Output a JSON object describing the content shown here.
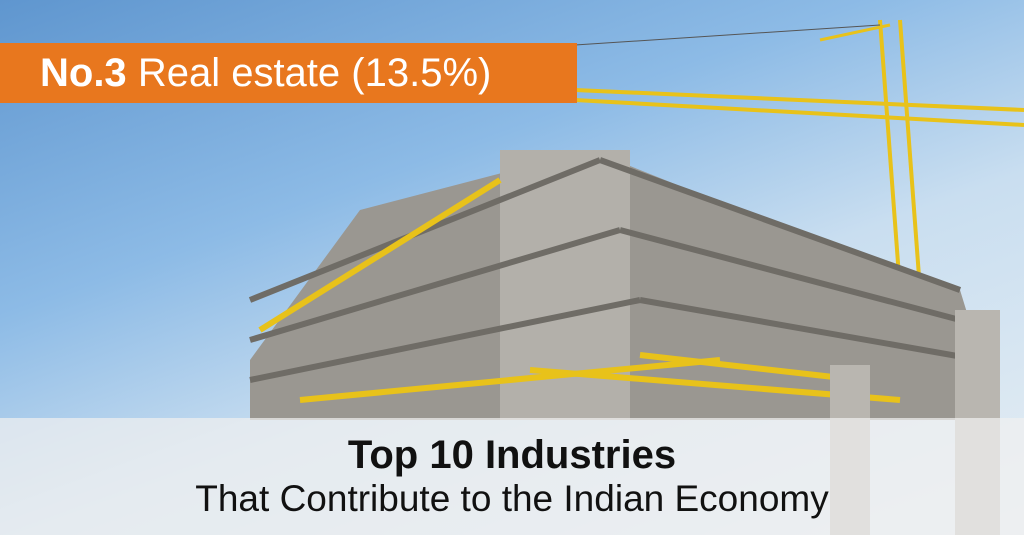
{
  "banner": {
    "rank": "No.3",
    "industry": "Real estate (13.5%)",
    "color": "#e8771e"
  },
  "caption": {
    "title": "Top 10 Industries",
    "subtitle": "That Contribute to the Indian Economy"
  },
  "photo": {
    "subject": "building-under-construction-with-crane"
  }
}
